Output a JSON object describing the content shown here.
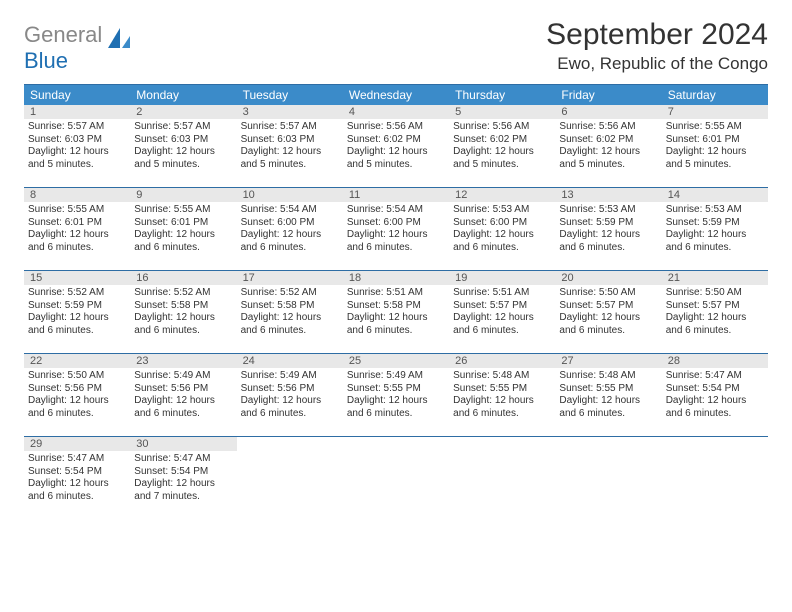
{
  "brand": {
    "word1": "General",
    "word2": "Blue"
  },
  "title": "September 2024",
  "location": "Ewo, Republic of the Congo",
  "colors": {
    "header_bg": "#3b8bc9",
    "header_border": "#2e6da4",
    "daynum_bg": "#e8e8e8",
    "brand_blue": "#1f6fb2",
    "brand_grey": "#888888",
    "text": "#333333"
  },
  "day_names": [
    "Sunday",
    "Monday",
    "Tuesday",
    "Wednesday",
    "Thursday",
    "Friday",
    "Saturday"
  ],
  "weeks": [
    [
      {
        "n": "1",
        "sr": "5:57 AM",
        "ss": "6:03 PM",
        "dl": "12 hours and 5 minutes."
      },
      {
        "n": "2",
        "sr": "5:57 AM",
        "ss": "6:03 PM",
        "dl": "12 hours and 5 minutes."
      },
      {
        "n": "3",
        "sr": "5:57 AM",
        "ss": "6:03 PM",
        "dl": "12 hours and 5 minutes."
      },
      {
        "n": "4",
        "sr": "5:56 AM",
        "ss": "6:02 PM",
        "dl": "12 hours and 5 minutes."
      },
      {
        "n": "5",
        "sr": "5:56 AM",
        "ss": "6:02 PM",
        "dl": "12 hours and 5 minutes."
      },
      {
        "n": "6",
        "sr": "5:56 AM",
        "ss": "6:02 PM",
        "dl": "12 hours and 5 minutes."
      },
      {
        "n": "7",
        "sr": "5:55 AM",
        "ss": "6:01 PM",
        "dl": "12 hours and 5 minutes."
      }
    ],
    [
      {
        "n": "8",
        "sr": "5:55 AM",
        "ss": "6:01 PM",
        "dl": "12 hours and 6 minutes."
      },
      {
        "n": "9",
        "sr": "5:55 AM",
        "ss": "6:01 PM",
        "dl": "12 hours and 6 minutes."
      },
      {
        "n": "10",
        "sr": "5:54 AM",
        "ss": "6:00 PM",
        "dl": "12 hours and 6 minutes."
      },
      {
        "n": "11",
        "sr": "5:54 AM",
        "ss": "6:00 PM",
        "dl": "12 hours and 6 minutes."
      },
      {
        "n": "12",
        "sr": "5:53 AM",
        "ss": "6:00 PM",
        "dl": "12 hours and 6 minutes."
      },
      {
        "n": "13",
        "sr": "5:53 AM",
        "ss": "5:59 PM",
        "dl": "12 hours and 6 minutes."
      },
      {
        "n": "14",
        "sr": "5:53 AM",
        "ss": "5:59 PM",
        "dl": "12 hours and 6 minutes."
      }
    ],
    [
      {
        "n": "15",
        "sr": "5:52 AM",
        "ss": "5:59 PM",
        "dl": "12 hours and 6 minutes."
      },
      {
        "n": "16",
        "sr": "5:52 AM",
        "ss": "5:58 PM",
        "dl": "12 hours and 6 minutes."
      },
      {
        "n": "17",
        "sr": "5:52 AM",
        "ss": "5:58 PM",
        "dl": "12 hours and 6 minutes."
      },
      {
        "n": "18",
        "sr": "5:51 AM",
        "ss": "5:58 PM",
        "dl": "12 hours and 6 minutes."
      },
      {
        "n": "19",
        "sr": "5:51 AM",
        "ss": "5:57 PM",
        "dl": "12 hours and 6 minutes."
      },
      {
        "n": "20",
        "sr": "5:50 AM",
        "ss": "5:57 PM",
        "dl": "12 hours and 6 minutes."
      },
      {
        "n": "21",
        "sr": "5:50 AM",
        "ss": "5:57 PM",
        "dl": "12 hours and 6 minutes."
      }
    ],
    [
      {
        "n": "22",
        "sr": "5:50 AM",
        "ss": "5:56 PM",
        "dl": "12 hours and 6 minutes."
      },
      {
        "n": "23",
        "sr": "5:49 AM",
        "ss": "5:56 PM",
        "dl": "12 hours and 6 minutes."
      },
      {
        "n": "24",
        "sr": "5:49 AM",
        "ss": "5:56 PM",
        "dl": "12 hours and 6 minutes."
      },
      {
        "n": "25",
        "sr": "5:49 AM",
        "ss": "5:55 PM",
        "dl": "12 hours and 6 minutes."
      },
      {
        "n": "26",
        "sr": "5:48 AM",
        "ss": "5:55 PM",
        "dl": "12 hours and 6 minutes."
      },
      {
        "n": "27",
        "sr": "5:48 AM",
        "ss": "5:55 PM",
        "dl": "12 hours and 6 minutes."
      },
      {
        "n": "28",
        "sr": "5:47 AM",
        "ss": "5:54 PM",
        "dl": "12 hours and 6 minutes."
      }
    ],
    [
      {
        "n": "29",
        "sr": "5:47 AM",
        "ss": "5:54 PM",
        "dl": "12 hours and 6 minutes."
      },
      {
        "n": "30",
        "sr": "5:47 AM",
        "ss": "5:54 PM",
        "dl": "12 hours and 7 minutes."
      },
      null,
      null,
      null,
      null,
      null
    ]
  ],
  "labels": {
    "sunrise": "Sunrise:",
    "sunset": "Sunset:",
    "daylight": "Daylight:"
  }
}
